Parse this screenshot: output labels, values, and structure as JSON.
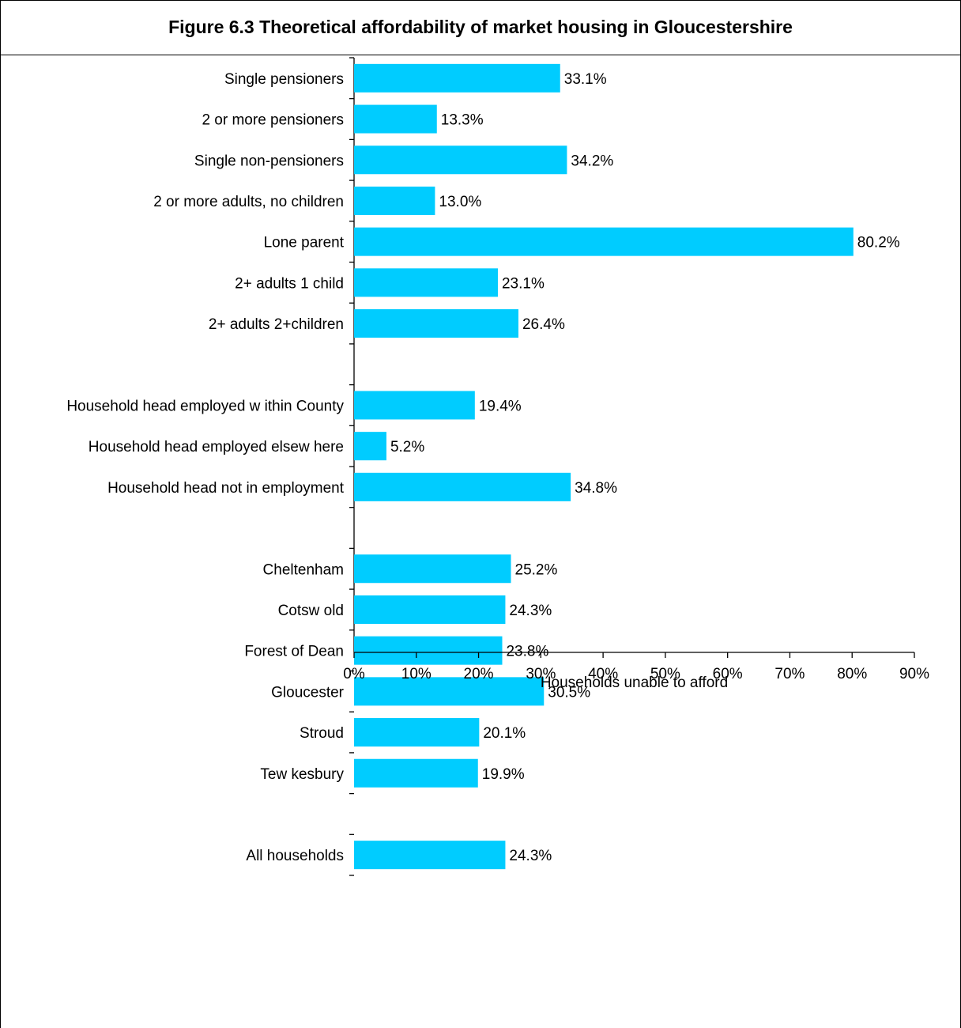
{
  "chart_data": {
    "type": "bar",
    "orientation": "horizontal",
    "title": "Figure 6.3 Theoretical affordability of market housing in Gloucestershire",
    "xlabel": "Households unable to afford",
    "ylabel": "",
    "xlim": [
      0,
      90
    ],
    "x_ticks": [
      "0%",
      "10%",
      "20%",
      "30%",
      "40%",
      "50%",
      "60%",
      "70%",
      "80%",
      "90%"
    ],
    "grid": false,
    "legend": "none",
    "bar_color": "#00CCFF",
    "groups": [
      {
        "categories": [
          "Single pensioners",
          "2 or more pensioners",
          "Single non-pensioners",
          "2 or more adults, no children",
          "Lone parent",
          "2+ adults 1 child",
          "2+ adults 2+children"
        ],
        "values": [
          33.1,
          13.3,
          34.2,
          13.0,
          80.2,
          23.1,
          26.4
        ],
        "labels": [
          "33.1%",
          "13.3%",
          "34.2%",
          "13.0%",
          "80.2%",
          "23.1%",
          "26.4%"
        ]
      },
      {
        "categories": [
          "Household head employed w ithin County",
          "Household head employed elsew here",
          "Household head not in employment"
        ],
        "values": [
          19.4,
          5.2,
          34.8
        ],
        "labels": [
          "19.4%",
          "5.2%",
          "34.8%"
        ]
      },
      {
        "categories": [
          "Cheltenham",
          "Cotsw old",
          "Forest of Dean",
          "Gloucester",
          "Stroud",
          "Tew kesbury"
        ],
        "values": [
          25.2,
          24.3,
          23.8,
          30.5,
          20.1,
          19.9
        ],
        "labels": [
          "25.2%",
          "24.3%",
          "23.8%",
          "30.5%",
          "20.1%",
          "19.9%"
        ]
      },
      {
        "categories": [
          "All households"
        ],
        "values": [
          24.3
        ],
        "labels": [
          "24.3%"
        ]
      }
    ]
  }
}
